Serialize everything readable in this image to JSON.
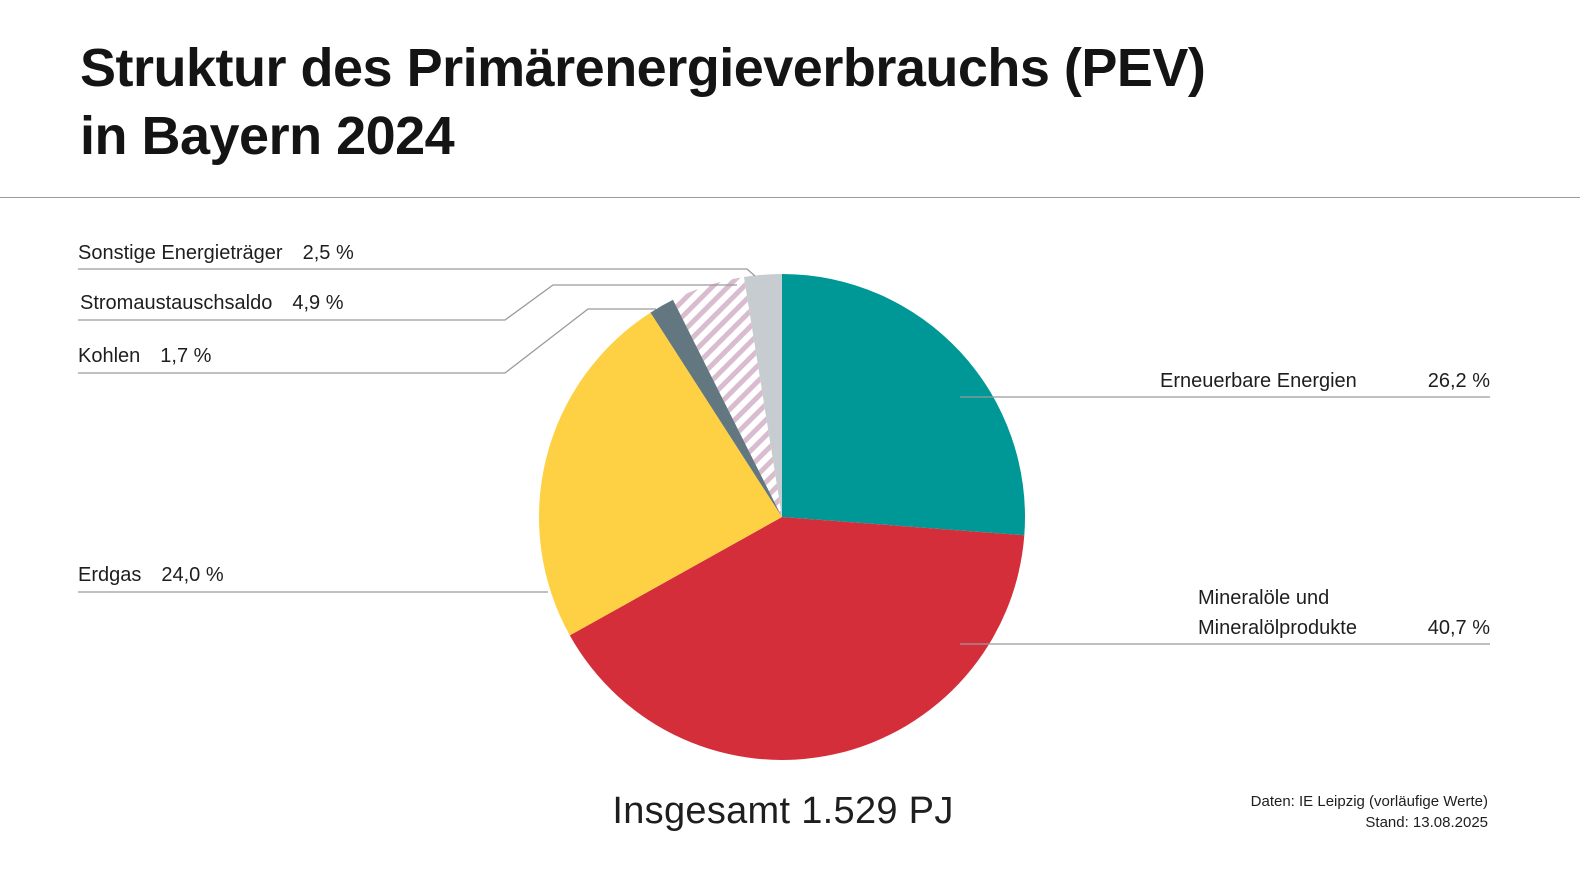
{
  "title_line1": "Struktur des Primärenergieverbrauchs (PEV)",
  "title_line2": "in Bayern 2024",
  "total_label": "Insgesamt 1.529 PJ",
  "source_line1": "Daten: IE Leipzig (vorläufige Werte)",
  "source_line2": "Stand: 13.08.2025",
  "chart_data": {
    "type": "pie",
    "unit": "%",
    "start": "12 o'clock, clockwise",
    "slices": [
      {
        "label": "Erneuerbare Energien",
        "value": 26.2,
        "value_label": "26,2 %",
        "color": "#009896",
        "pattern": "solid"
      },
      {
        "label": "Mineralöle und Mineralölprodukte",
        "label_lines": [
          "Mineralöle und",
          "Mineralölprodukte"
        ],
        "value": 40.7,
        "value_label": "40,7 %",
        "color": "#d42e3a",
        "pattern": "solid"
      },
      {
        "label": "Erdgas",
        "value": 24.0,
        "value_label": "24,0 %",
        "color": "#fdd143",
        "pattern": "solid"
      },
      {
        "label": "Kohlen",
        "value": 1.7,
        "value_label": "1,7 %",
        "color": "#637780",
        "pattern": "solid"
      },
      {
        "label": "Stromaustauschsaldo",
        "value": 4.9,
        "value_label": "4,9 %",
        "color": "#c9a4be",
        "pattern": "diagonal-stripes"
      },
      {
        "label": "Sonstige Energieträger",
        "value": 2.5,
        "value_label": "2,5 %",
        "color": "#c7ccd0",
        "pattern": "solid"
      }
    ],
    "leader_line_color": "#9a9a9a"
  }
}
